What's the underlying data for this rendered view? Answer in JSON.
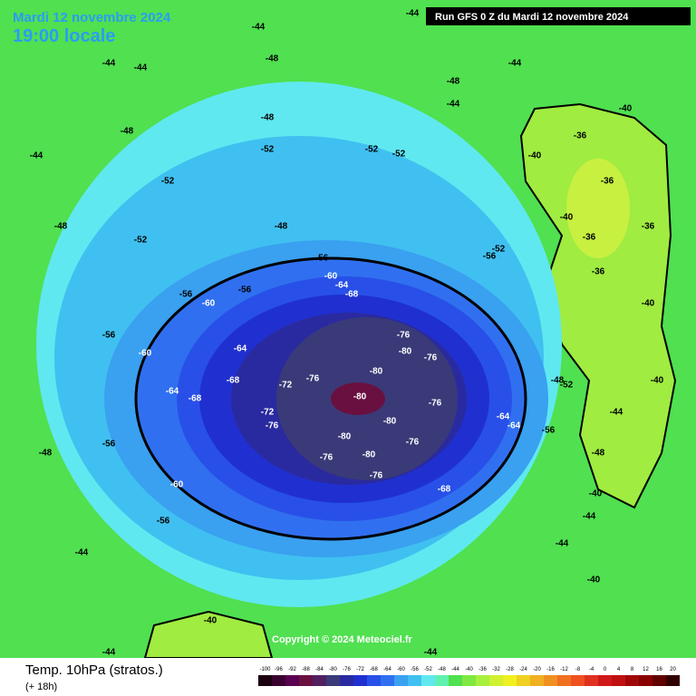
{
  "header": {
    "date": "Mardi 12 novembre 2024",
    "time": "19:00 locale",
    "run": "Run GFS 0 Z du Mardi 12 novembre 2024"
  },
  "footer": {
    "parameter": "Temp. 10hPa (stratos.)",
    "lead": "(+ 18h)",
    "copyright": "Copyright © 2024 Meteociel.fr"
  },
  "legend": {
    "values": [
      -100,
      -96,
      -92,
      -88,
      -84,
      -80,
      -76,
      -72,
      -68,
      -64,
      -60,
      -56,
      -52,
      -48,
      -44,
      -40,
      -36,
      -32,
      -28,
      -24,
      -20,
      -16,
      -12,
      -8,
      -4,
      0,
      4,
      8,
      12,
      16,
      20
    ],
    "colors": [
      "#1a0010",
      "#3a0030",
      "#5a0050",
      "#6a1040",
      "#502060",
      "#3a3a78",
      "#2a2aa0",
      "#2030d0",
      "#2850e8",
      "#3070f0",
      "#3aa0f0",
      "#40c0f0",
      "#60e8f0",
      "#60f0b0",
      "#50e050",
      "#80e840",
      "#a8f040",
      "#d0f030",
      "#f0f020",
      "#f0d020",
      "#f0b020",
      "#f09020",
      "#f07020",
      "#f05020",
      "#e03020",
      "#d01818",
      "#c01010",
      "#a00808",
      "#880000",
      "#600000",
      "#300000"
    ]
  },
  "contour_labels": [
    -44,
    -44,
    -44,
    -44,
    -44,
    -44,
    -44,
    -44,
    -44,
    -44,
    -44,
    -44,
    -44,
    -48,
    -48,
    -48,
    -48,
    -48,
    -48,
    -48,
    -48,
    -48,
    -52,
    -52,
    -52,
    -52,
    -52,
    -52,
    -52,
    -56,
    -56,
    -56,
    -56,
    -56,
    -56,
    -56,
    -56,
    -60,
    -60,
    -60,
    -60,
    -64,
    -64,
    -64,
    -64,
    -64,
    -68,
    -68,
    -68,
    -68,
    -72,
    -72,
    -76,
    -76,
    -76,
    -76,
    -76,
    -76,
    -76,
    -76,
    -80,
    -80,
    -80,
    -80,
    -80,
    -80,
    -36,
    -36,
    -36,
    -36,
    -36,
    -40,
    -40,
    -40,
    -40,
    -40,
    -40,
    -40,
    -40
  ]
}
